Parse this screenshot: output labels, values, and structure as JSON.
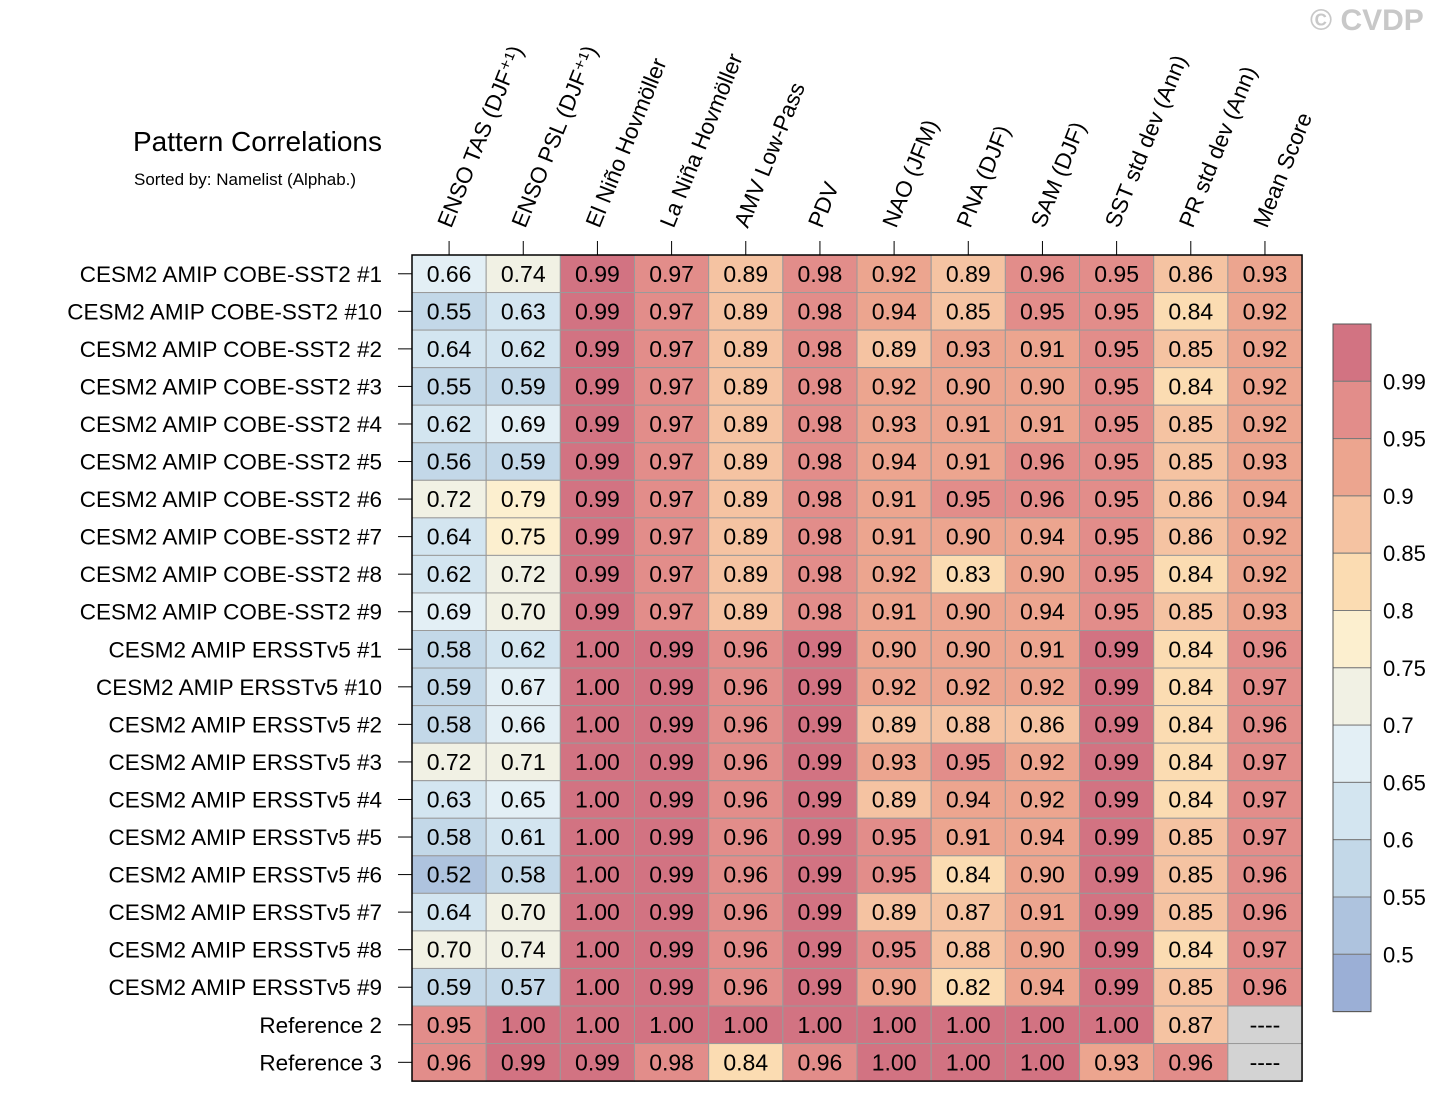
{
  "title": "Pattern Correlations",
  "subtitle": "Sorted by: Namelist (Alphab.)",
  "watermark": "© CVDP",
  "chart_data": {
    "type": "heatmap",
    "columns": [
      "ENSO TAS (DJF⁺¹)",
      "ENSO PSL (DJF⁺¹)",
      "El Niño Hovmöller",
      "La Niña Hovmöller",
      "AMV Low-Pass",
      "PDV",
      "NAO (JFM)",
      "PNA (DJF)",
      "SAM (DJF)",
      "SST std dev (Ann)",
      "PR std dev (Ann)",
      "Mean Score"
    ],
    "rows": [
      "CESM2 AMIP COBE-SST2 #1",
      "CESM2 AMIP COBE-SST2 #10",
      "CESM2 AMIP COBE-SST2 #2",
      "CESM2 AMIP COBE-SST2 #3",
      "CESM2 AMIP COBE-SST2 #4",
      "CESM2 AMIP COBE-SST2 #5",
      "CESM2 AMIP COBE-SST2 #6",
      "CESM2 AMIP COBE-SST2 #7",
      "CESM2 AMIP COBE-SST2 #8",
      "CESM2 AMIP COBE-SST2 #9",
      "CESM2 AMIP ERSSTv5 #1",
      "CESM2 AMIP ERSSTv5 #10",
      "CESM2 AMIP ERSSTv5 #2",
      "CESM2 AMIP ERSSTv5 #3",
      "CESM2 AMIP ERSSTv5 #4",
      "CESM2 AMIP ERSSTv5 #5",
      "CESM2 AMIP ERSSTv5 #6",
      "CESM2 AMIP ERSSTv5 #7",
      "CESM2 AMIP ERSSTv5 #8",
      "CESM2 AMIP ERSSTv5 #9",
      "Reference 2",
      "Reference 3"
    ],
    "values": [
      [
        "0.66",
        "0.74",
        "0.99",
        "0.97",
        "0.89",
        "0.98",
        "0.92",
        "0.89",
        "0.96",
        "0.95",
        "0.86",
        "0.93"
      ],
      [
        "0.55",
        "0.63",
        "0.99",
        "0.97",
        "0.89",
        "0.98",
        "0.94",
        "0.85",
        "0.95",
        "0.95",
        "0.84",
        "0.92"
      ],
      [
        "0.64",
        "0.62",
        "0.99",
        "0.97",
        "0.89",
        "0.98",
        "0.89",
        "0.93",
        "0.91",
        "0.95",
        "0.85",
        "0.92"
      ],
      [
        "0.55",
        "0.59",
        "0.99",
        "0.97",
        "0.89",
        "0.98",
        "0.92",
        "0.90",
        "0.90",
        "0.95",
        "0.84",
        "0.92"
      ],
      [
        "0.62",
        "0.69",
        "0.99",
        "0.97",
        "0.89",
        "0.98",
        "0.93",
        "0.91",
        "0.91",
        "0.95",
        "0.85",
        "0.92"
      ],
      [
        "0.56",
        "0.59",
        "0.99",
        "0.97",
        "0.89",
        "0.98",
        "0.94",
        "0.91",
        "0.96",
        "0.95",
        "0.85",
        "0.93"
      ],
      [
        "0.72",
        "0.79",
        "0.99",
        "0.97",
        "0.89",
        "0.98",
        "0.91",
        "0.95",
        "0.96",
        "0.95",
        "0.86",
        "0.94"
      ],
      [
        "0.64",
        "0.75",
        "0.99",
        "0.97",
        "0.89",
        "0.98",
        "0.91",
        "0.90",
        "0.94",
        "0.95",
        "0.86",
        "0.92"
      ],
      [
        "0.62",
        "0.72",
        "0.99",
        "0.97",
        "0.89",
        "0.98",
        "0.92",
        "0.83",
        "0.90",
        "0.95",
        "0.84",
        "0.92"
      ],
      [
        "0.69",
        "0.70",
        "0.99",
        "0.97",
        "0.89",
        "0.98",
        "0.91",
        "0.90",
        "0.94",
        "0.95",
        "0.85",
        "0.93"
      ],
      [
        "0.58",
        "0.62",
        "1.00",
        "0.99",
        "0.96",
        "0.99",
        "0.90",
        "0.90",
        "0.91",
        "0.99",
        "0.84",
        "0.96"
      ],
      [
        "0.59",
        "0.67",
        "1.00",
        "0.99",
        "0.96",
        "0.99",
        "0.92",
        "0.92",
        "0.92",
        "0.99",
        "0.84",
        "0.97"
      ],
      [
        "0.58",
        "0.66",
        "1.00",
        "0.99",
        "0.96",
        "0.99",
        "0.89",
        "0.88",
        "0.86",
        "0.99",
        "0.84",
        "0.96"
      ],
      [
        "0.72",
        "0.71",
        "1.00",
        "0.99",
        "0.96",
        "0.99",
        "0.93",
        "0.95",
        "0.92",
        "0.99",
        "0.84",
        "0.97"
      ],
      [
        "0.63",
        "0.65",
        "1.00",
        "0.99",
        "0.96",
        "0.99",
        "0.89",
        "0.94",
        "0.92",
        "0.99",
        "0.84",
        "0.97"
      ],
      [
        "0.58",
        "0.61",
        "1.00",
        "0.99",
        "0.96",
        "0.99",
        "0.95",
        "0.91",
        "0.94",
        "0.99",
        "0.85",
        "0.97"
      ],
      [
        "0.52",
        "0.58",
        "1.00",
        "0.99",
        "0.96",
        "0.99",
        "0.95",
        "0.84",
        "0.90",
        "0.99",
        "0.85",
        "0.96"
      ],
      [
        "0.64",
        "0.70",
        "1.00",
        "0.99",
        "0.96",
        "0.99",
        "0.89",
        "0.87",
        "0.91",
        "0.99",
        "0.85",
        "0.96"
      ],
      [
        "0.70",
        "0.74",
        "1.00",
        "0.99",
        "0.96",
        "0.99",
        "0.95",
        "0.88",
        "0.90",
        "0.99",
        "0.84",
        "0.97"
      ],
      [
        "0.59",
        "0.57",
        "1.00",
        "0.99",
        "0.96",
        "0.99",
        "0.90",
        "0.82",
        "0.94",
        "0.99",
        "0.85",
        "0.96"
      ],
      [
        "0.95",
        "1.00",
        "1.00",
        "1.00",
        "1.00",
        "1.00",
        "1.00",
        "1.00",
        "1.00",
        "1.00",
        "0.87",
        "----"
      ],
      [
        "0.96",
        "0.99",
        "0.99",
        "0.98",
        "0.84",
        "0.96",
        "1.00",
        "1.00",
        "1.00",
        "0.93",
        "0.96",
        "----"
      ]
    ],
    "colorbar": {
      "tick_labels": [
        "0.99",
        "0.95",
        "0.9",
        "0.85",
        "0.8",
        "0.75",
        "0.7",
        "0.65",
        "0.6",
        "0.55",
        "0.5"
      ],
      "bins": [
        {
          "upper_bound": 0.5,
          "color": "#9bafd6"
        },
        {
          "upper_bound": 0.55,
          "color": "#aec3de"
        },
        {
          "upper_bound": 0.6,
          "color": "#c3d8e8"
        },
        {
          "upper_bound": 0.65,
          "color": "#d3e5f0"
        },
        {
          "upper_bound": 0.7,
          "color": "#e3eff5"
        },
        {
          "upper_bound": 0.75,
          "color": "#f1f1e4"
        },
        {
          "upper_bound": 0.8,
          "color": "#fcefcf"
        },
        {
          "upper_bound": 0.85,
          "color": "#fbdcb2"
        },
        {
          "upper_bound": 0.9,
          "color": "#f5c3a2"
        },
        {
          "upper_bound": 0.95,
          "color": "#eca58f"
        },
        {
          "upper_bound": 0.99,
          "color": "#e28d8a"
        },
        {
          "upper_bound": 1.01,
          "color": "#d27382"
        }
      ],
      "missing_color": "#d3d3d3"
    }
  }
}
